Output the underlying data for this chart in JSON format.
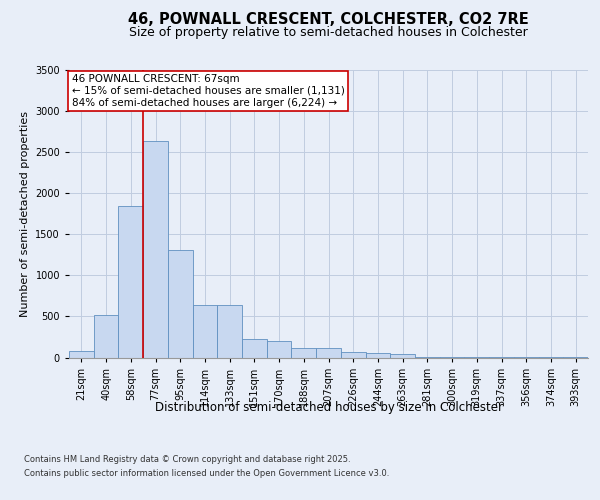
{
  "title_line1": "46, POWNALL CRESCENT, COLCHESTER, CO2 7RE",
  "title_line2": "Size of property relative to semi-detached houses in Colchester",
  "xlabel": "Distribution of semi-detached houses by size in Colchester",
  "ylabel": "Number of semi-detached properties",
  "annotation_title": "46 POWNALL CRESCENT: 67sqm",
  "annotation_line2": "← 15% of semi-detached houses are smaller (1,131)",
  "annotation_line3": "84% of semi-detached houses are larger (6,224) →",
  "footer_line1": "Contains HM Land Registry data © Crown copyright and database right 2025.",
  "footer_line2": "Contains public sector information licensed under the Open Government Licence v3.0.",
  "bin_labels": [
    "21sqm",
    "40sqm",
    "58sqm",
    "77sqm",
    "95sqm",
    "114sqm",
    "133sqm",
    "151sqm",
    "170sqm",
    "188sqm",
    "207sqm",
    "226sqm",
    "244sqm",
    "263sqm",
    "281sqm",
    "300sqm",
    "319sqm",
    "337sqm",
    "356sqm",
    "374sqm",
    "393sqm"
  ],
  "bar_values": [
    80,
    520,
    1850,
    2640,
    1310,
    640,
    640,
    220,
    200,
    110,
    110,
    70,
    50,
    40,
    10,
    5,
    3,
    3,
    3,
    3,
    3
  ],
  "bar_color": "#c8d8f0",
  "bar_edge_color": "#6090c0",
  "red_line_bin": 2,
  "red_line_color": "#cc0000",
  "ylim": [
    0,
    3500
  ],
  "yticks": [
    0,
    500,
    1000,
    1500,
    2000,
    2500,
    3000,
    3500
  ],
  "background_color": "#e8eef8",
  "grid_color": "#c0cce0",
  "annotation_box_color": "#ffffff",
  "annotation_box_edge": "#cc0000",
  "title_fontsize": 10.5,
  "subtitle_fontsize": 9,
  "axis_label_fontsize": 8.5,
  "tick_fontsize": 7,
  "annotation_fontsize": 7.5,
  "footer_fontsize": 6,
  "ylabel_fontsize": 8
}
